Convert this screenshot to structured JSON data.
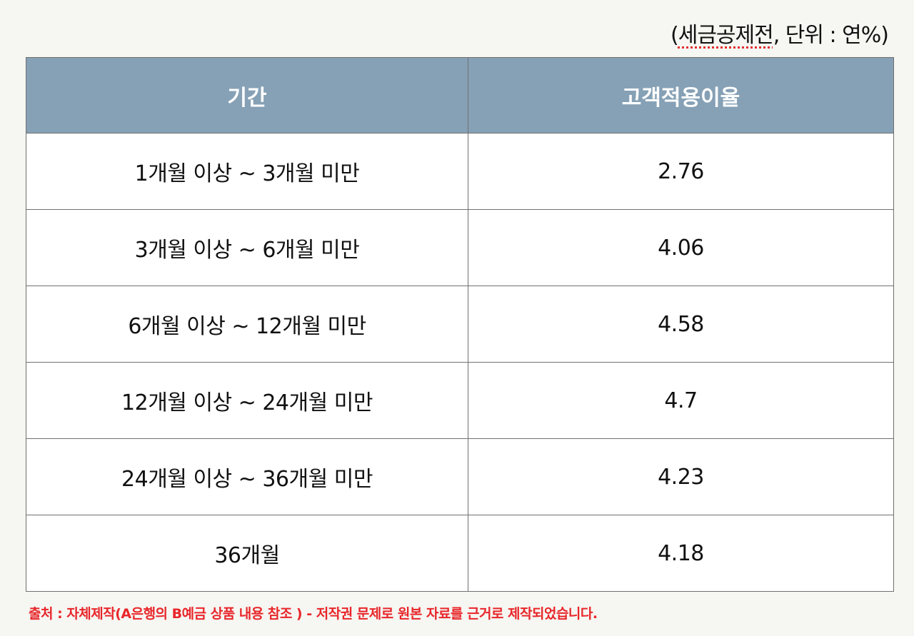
{
  "unit_note": {
    "prefix": "(",
    "spell_word": "세금공제전",
    "rest": ", 단위 : 연%)"
  },
  "table": {
    "headers": [
      "기간",
      "고객적용이율"
    ],
    "rows": [
      [
        "1개월 이상 ~ 3개월 미만",
        "2.76"
      ],
      [
        "3개월 이상 ~ 6개월 미만",
        "4.06"
      ],
      [
        "6개월 이상 ~ 12개월 미만",
        "4.58"
      ],
      [
        "12개월 이상 ~ 24개월 미만",
        "4.7"
      ],
      [
        "24개월 이상 ~ 36개월 미만",
        "4.23"
      ],
      [
        "36개월",
        "4.18"
      ]
    ]
  },
  "source": "출처 : 자체제작(A은행의 B예금 상품 내용 참조 ) - 저작권 문제로 원본 자료를 근거로 제작되었습니다.",
  "colors": {
    "header_bg": "#86a1b6",
    "source_text": "#e8262a",
    "page_bg": "#f6f6f2"
  }
}
